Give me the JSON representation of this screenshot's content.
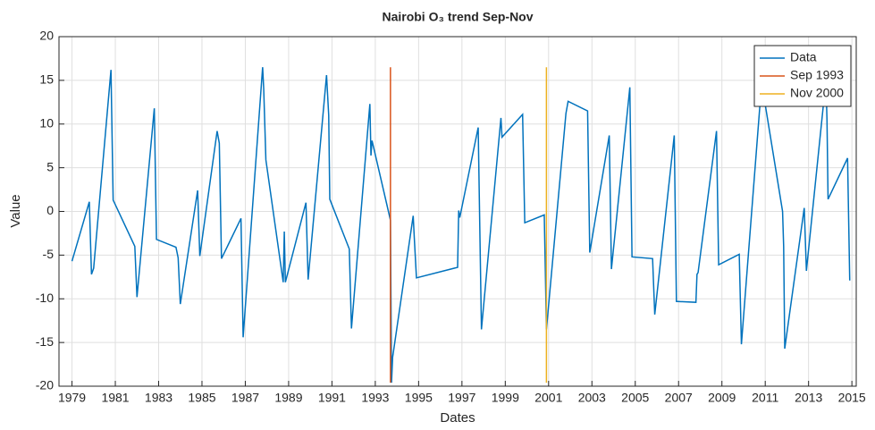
{
  "chart_data": {
    "type": "line",
    "title": "Nairobi O₃ trend Sep-Nov",
    "xlabel": "Dates",
    "ylabel": "Value",
    "xlim": [
      1978.4,
      2015.2
    ],
    "ylim": [
      -20,
      20
    ],
    "xticks": [
      1979,
      1981,
      1983,
      1985,
      1987,
      1989,
      1991,
      1993,
      1995,
      1997,
      1999,
      2001,
      2003,
      2005,
      2007,
      2009,
      2011,
      2013,
      2015
    ],
    "yticks": [
      -20,
      -15,
      -10,
      -5,
      0,
      5,
      10,
      15,
      20
    ],
    "grid": true,
    "legend": "northeast",
    "series": [
      {
        "name": "Data",
        "color": "#0072bd",
        "x": [
          1979.0,
          1979.8,
          1979.9,
          1980.0,
          1980.8,
          1980.9,
          1981.9,
          1982.0,
          1982.8,
          1982.9,
          1983.8,
          1983.9,
          1984.0,
          1984.8,
          1984.9,
          1985.7,
          1985.8,
          1985.9,
          1986.8,
          1986.9,
          1987.8,
          1987.85,
          1987.95,
          1988.75,
          1988.8,
          1988.85,
          1989.8,
          1989.9,
          1990.75,
          1990.85,
          1990.9,
          1991.8,
          1991.9,
          1992.75,
          1992.8,
          1992.85,
          1993.7,
          1993.75,
          1993.8,
          1994.75,
          1994.8,
          1994.9,
          1996.8,
          1996.85,
          1996.9,
          1997.75,
          1997.9,
          1998.8,
          1998.85,
          1999.8,
          1999.9,
          2000.8,
          2000.9,
          2001.8,
          2001.9,
          2002.8,
          2002.9,
          2003.8,
          2003.9,
          2004.75,
          2004.85,
          2005.8,
          2005.9,
          2006.8,
          2006.9,
          2007.8,
          2007.85,
          2007.9,
          2008.75,
          2008.85,
          2009.8,
          2009.9,
          2010.8,
          2010.85,
          2011.8,
          2011.85,
          2011.9,
          2012.8,
          2012.9,
          2013.8,
          2013.85,
          2013.9,
          2014.8,
          2014.9
        ],
        "values": [
          -5.7,
          1.1,
          -7.2,
          -6.5,
          16.2,
          1.3,
          -4.0,
          -9.8,
          11.8,
          -3.2,
          -4.1,
          -5.3,
          -10.6,
          2.4,
          -5.1,
          9.2,
          7.8,
          -5.4,
          -0.8,
          -14.4,
          16.5,
          14.0,
          5.9,
          -8.1,
          -2.3,
          -8.1,
          1.0,
          -7.8,
          15.6,
          11.0,
          1.4,
          -4.3,
          -13.4,
          12.3,
          6.4,
          8.1,
          -1.0,
          -19.6,
          -16.7,
          -0.5,
          -3.0,
          -7.6,
          -6.4,
          0.1,
          -0.7,
          9.6,
          -13.5,
          10.7,
          8.5,
          11.1,
          -1.3,
          -0.4,
          -13.5,
          11.2,
          12.6,
          11.5,
          -4.7,
          8.7,
          -6.6,
          14.2,
          -5.2,
          -5.4,
          -11.8,
          8.7,
          -10.3,
          -10.4,
          -7.2,
          -7.0,
          9.2,
          -6.1,
          -4.9,
          -15.2,
          13.6,
          14.5,
          0.0,
          -4.0,
          -15.7,
          0.4,
          -6.8,
          15.0,
          10.5,
          1.4,
          6.1,
          -7.9
        ]
      },
      {
        "name": "Sep 1993",
        "color": "#d95319",
        "x": [
          1993.7,
          1993.7
        ],
        "values": [
          -19.6,
          16.5
        ]
      },
      {
        "name": "Nov 2000",
        "color": "#edb120",
        "x": [
          2000.9,
          2000.9
        ],
        "values": [
          -19.6,
          16.5
        ]
      }
    ]
  }
}
